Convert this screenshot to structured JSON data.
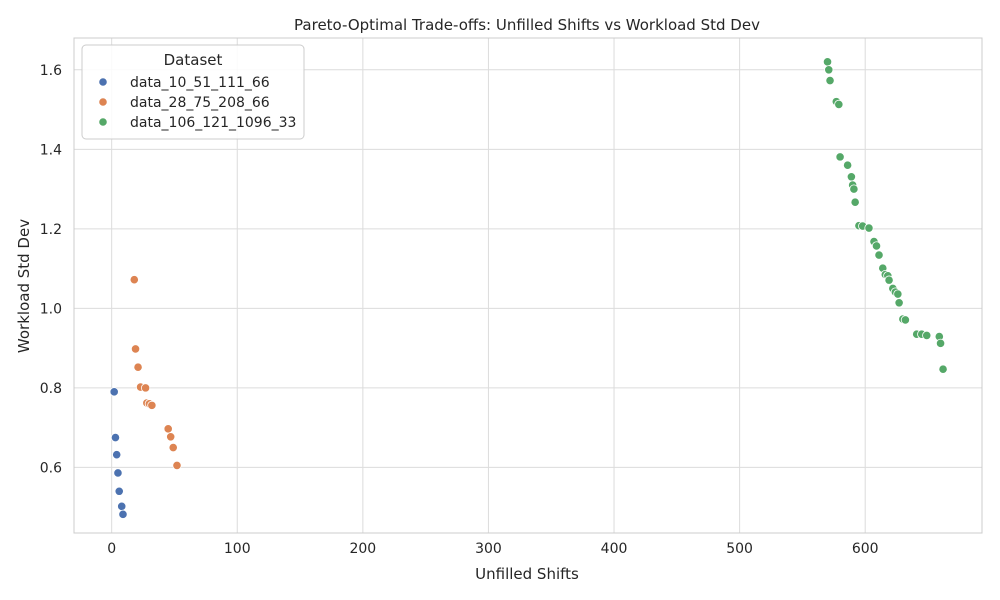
{
  "chart_data": {
    "type": "scatter",
    "title": "Pareto-Optimal Trade-offs: Unfilled Shifts vs Workload Std Dev",
    "xlabel": "Unfilled Shifts",
    "ylabel": "Workload Std Dev",
    "xlim": [
      -30,
      693
    ],
    "ylim": [
      0.435,
      1.68
    ],
    "xticks": [
      0,
      100,
      200,
      300,
      400,
      500,
      600
    ],
    "yticks": [
      0.6,
      0.8,
      1.0,
      1.2,
      1.4,
      1.6
    ],
    "ytick_labels": [
      "0.6",
      "0.8",
      "1.0",
      "1.2",
      "1.4",
      "1.6"
    ],
    "grid": true,
    "legend": {
      "title": "Dataset",
      "position": "top-left"
    },
    "series": [
      {
        "name": "data_10_51_111_66",
        "color": "#4c72b0",
        "points": [
          [
            2,
            0.79
          ],
          [
            3,
            0.675
          ],
          [
            4,
            0.632
          ],
          [
            5,
            0.586
          ],
          [
            6,
            0.54
          ],
          [
            8,
            0.502
          ],
          [
            9,
            0.482
          ]
        ]
      },
      {
        "name": "data_28_75_208_66",
        "color": "#dd8452",
        "points": [
          [
            18,
            1.072
          ],
          [
            19,
            0.898
          ],
          [
            21,
            0.852
          ],
          [
            23,
            0.802
          ],
          [
            27,
            0.8
          ],
          [
            28,
            0.762
          ],
          [
            30,
            0.76
          ],
          [
            32,
            0.756
          ],
          [
            45,
            0.697
          ],
          [
            47,
            0.677
          ],
          [
            49,
            0.65
          ],
          [
            52,
            0.605
          ]
        ]
      },
      {
        "name": "data_106_121_1096_33",
        "color": "#55a868",
        "points": [
          [
            570,
            1.62
          ],
          [
            571,
            1.6
          ],
          [
            572,
            1.573
          ],
          [
            577,
            1.52
          ],
          [
            579,
            1.513
          ],
          [
            580,
            1.381
          ],
          [
            586,
            1.36
          ],
          [
            589,
            1.331
          ],
          [
            590,
            1.31
          ],
          [
            591,
            1.3
          ],
          [
            592,
            1.267
          ],
          [
            595,
            1.208
          ],
          [
            598,
            1.207
          ],
          [
            603,
            1.202
          ],
          [
            607,
            1.168
          ],
          [
            609,
            1.157
          ],
          [
            611,
            1.134
          ],
          [
            614,
            1.101
          ],
          [
            616,
            1.085
          ],
          [
            618,
            1.082
          ],
          [
            619,
            1.071
          ],
          [
            622,
            1.05
          ],
          [
            624,
            1.041
          ],
          [
            626,
            1.036
          ],
          [
            627,
            1.014
          ],
          [
            630,
            0.973
          ],
          [
            632,
            0.971
          ],
          [
            641,
            0.935
          ],
          [
            645,
            0.935
          ],
          [
            649,
            0.932
          ],
          [
            659,
            0.929
          ],
          [
            660,
            0.912
          ],
          [
            662,
            0.847
          ]
        ]
      }
    ]
  }
}
